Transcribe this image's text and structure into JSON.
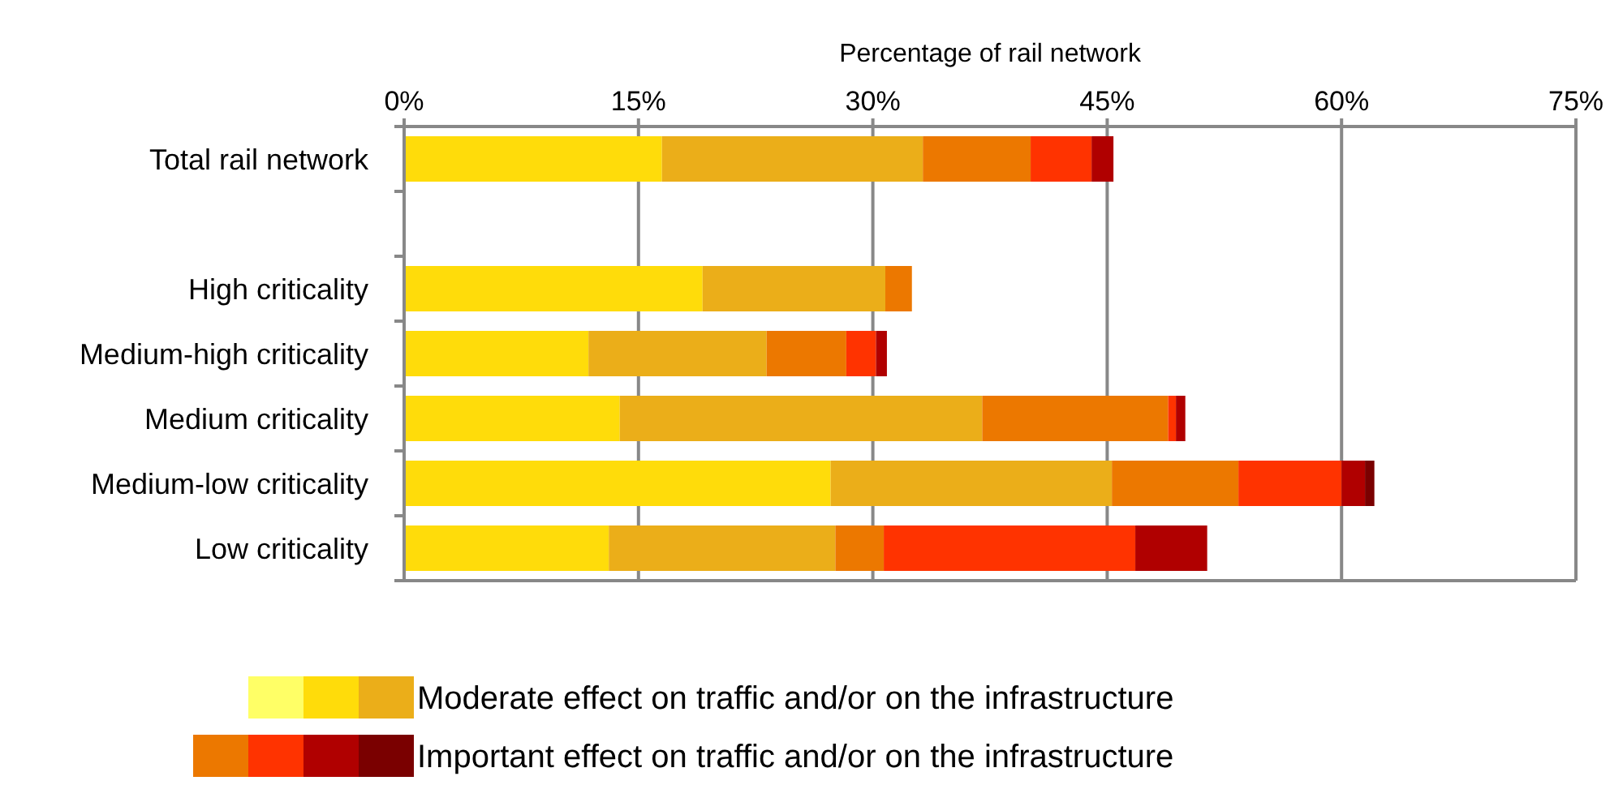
{
  "chart_data": {
    "type": "bar",
    "orientation": "horizontal",
    "stacked": true,
    "xlabel": "Percentage of rail network",
    "categories": [
      "Total rail network",
      null,
      "High criticality",
      "Medium-high criticality",
      "Medium criticality",
      "Medium-low criticality",
      "Low criticality"
    ],
    "series": [
      {
        "color": "#ffff66",
        "values": [
          null,
          null,
          null,
          null,
          null,
          null,
          null
        ]
      },
      {
        "color": "#ffdc0a",
        "values": [
          16.5,
          null,
          19.1,
          11.8,
          13.8,
          27.3,
          13.1
        ]
      },
      {
        "name": "Moderate effect on traffic and/or on the infrastructure",
        "color": "#ebae19",
        "values": [
          16.7,
          null,
          11.7,
          11.4,
          23.2,
          18.0,
          14.5
        ]
      },
      {
        "color": "#ec7800",
        "values": [
          6.9,
          null,
          1.7,
          5.1,
          11.9,
          8.1,
          3.1
        ]
      },
      {
        "color": "#ff3300",
        "values": [
          3.9,
          null,
          null,
          1.9,
          0.5,
          6.6,
          16.1
        ]
      },
      {
        "color": "#b00000",
        "values": [
          1.4,
          null,
          null,
          0.7,
          0.6,
          1.5,
          4.6
        ]
      },
      {
        "name": "Important effect on traffic and/or on the infrastructure",
        "color": "#7a0000",
        "values": [
          null,
          null,
          null,
          null,
          null,
          0.6,
          null
        ]
      }
    ],
    "xlim": [
      0,
      75
    ],
    "xticks": [
      {
        "value": 0,
        "label": "0%"
      },
      {
        "value": 15,
        "label": "15%"
      },
      {
        "value": 30,
        "label": "30%"
      },
      {
        "value": 45,
        "label": "45%"
      },
      {
        "value": 60,
        "label": "60%"
      },
      {
        "value": 75,
        "label": "75%"
      }
    ],
    "grid": "x",
    "legend": "bottom"
  }
}
